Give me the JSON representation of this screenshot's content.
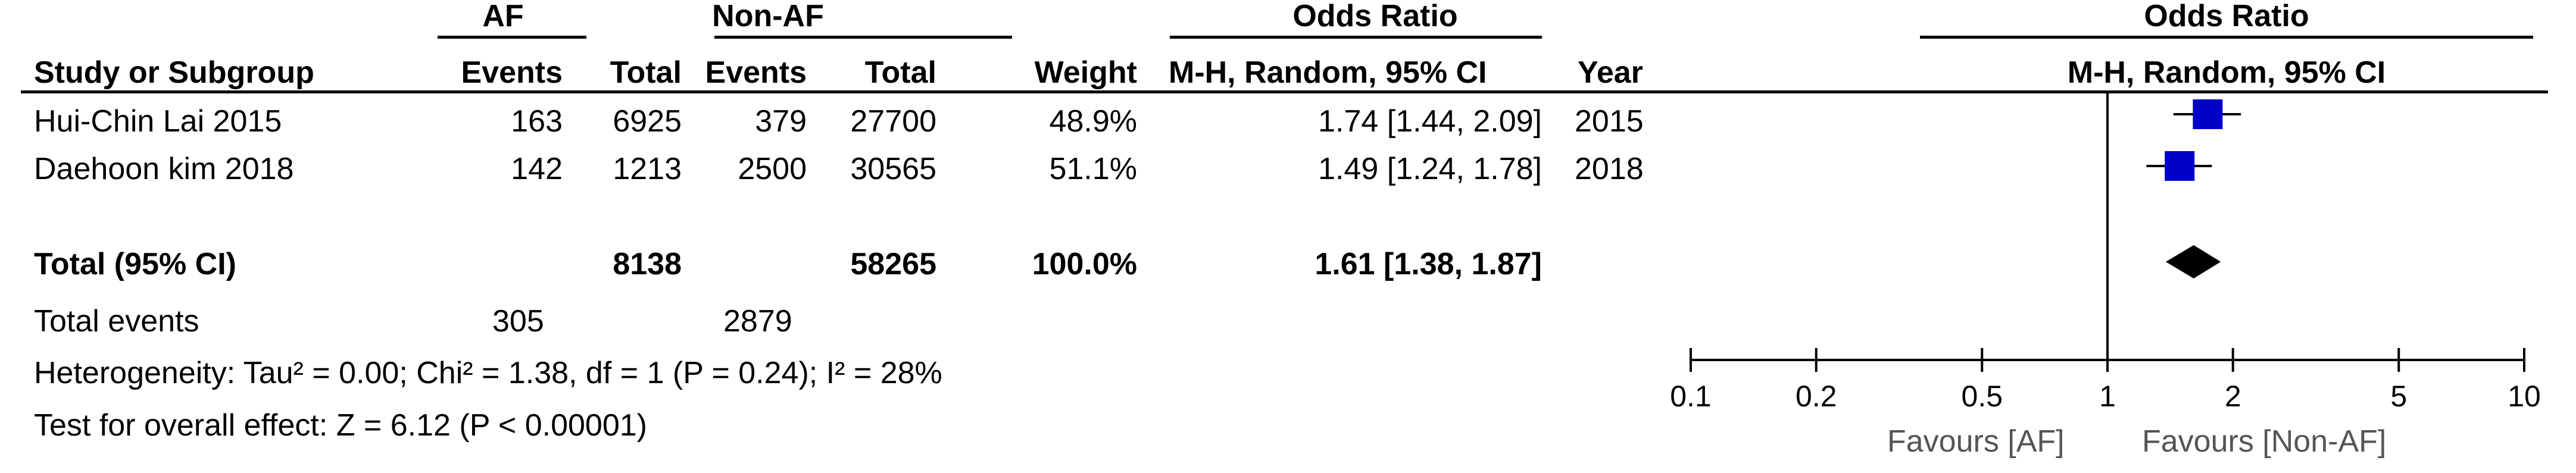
{
  "header": {
    "group1": "AF",
    "group2": "Non-AF",
    "or_title_left": "Odds Ratio",
    "or_title_right": "Odds Ratio",
    "study_col": "Study or Subgroup",
    "events1": "Events",
    "total1": "Total",
    "events2": "Events",
    "total2": "Total",
    "weight": "Weight",
    "method_left": "M-H, Random, 95% CI",
    "year": "Year",
    "method_right": "M-H, Random, 95% CI"
  },
  "studies": [
    {
      "name": "Hui-Chin Lai 2015",
      "e1": "163",
      "t1": "6925",
      "e2": "379",
      "t2": "27700",
      "weight": "48.9%",
      "ci": "1.74 [1.44, 2.09]",
      "year": "2015"
    },
    {
      "name": "Daehoon kim  2018",
      "e1": "142",
      "t1": "1213",
      "e2": "2500",
      "t2": "30565",
      "weight": "51.1%",
      "ci": "1.49 [1.24, 1.78]",
      "year": "2018"
    }
  ],
  "total": {
    "label": "Total (95% CI)",
    "t1": "8138",
    "t2": "58265",
    "weight": "100.0%",
    "ci": "1.61 [1.38, 1.87]"
  },
  "events": {
    "label": "Total events",
    "e1": "305",
    "e2": "2879"
  },
  "heterogeneity": "Heterogeneity: Tau² = 0.00; Chi² = 1.38, df = 1 (P = 0.24); I² = 28%",
  "overall_effect": "Test for overall effect: Z = 6.12 (P < 0.00001)",
  "favours": {
    "left": "Favours [AF]",
    "right": "Favours [Non-AF]"
  },
  "chart_data": {
    "type": "forest",
    "scale": "log",
    "xlim": [
      0.1,
      10
    ],
    "ticks": [
      0.1,
      0.2,
      0.5,
      1,
      2,
      5,
      10
    ],
    "tick_labels": [
      "0.1",
      "0.2",
      "0.5",
      "1",
      "2",
      "5",
      "10"
    ],
    "null_line": 1,
    "studies": [
      {
        "name": "Hui-Chin Lai 2015",
        "or": 1.74,
        "lower": 1.44,
        "upper": 2.09,
        "weight": 48.9
      },
      {
        "name": "Daehoon kim  2018",
        "or": 1.49,
        "lower": 1.24,
        "upper": 1.78,
        "weight": 51.1
      }
    ],
    "pooled": {
      "or": 1.61,
      "lower": 1.38,
      "upper": 1.87
    },
    "colors": {
      "square": "#0000c8",
      "diamond": "#000000",
      "line": "#000000"
    }
  }
}
